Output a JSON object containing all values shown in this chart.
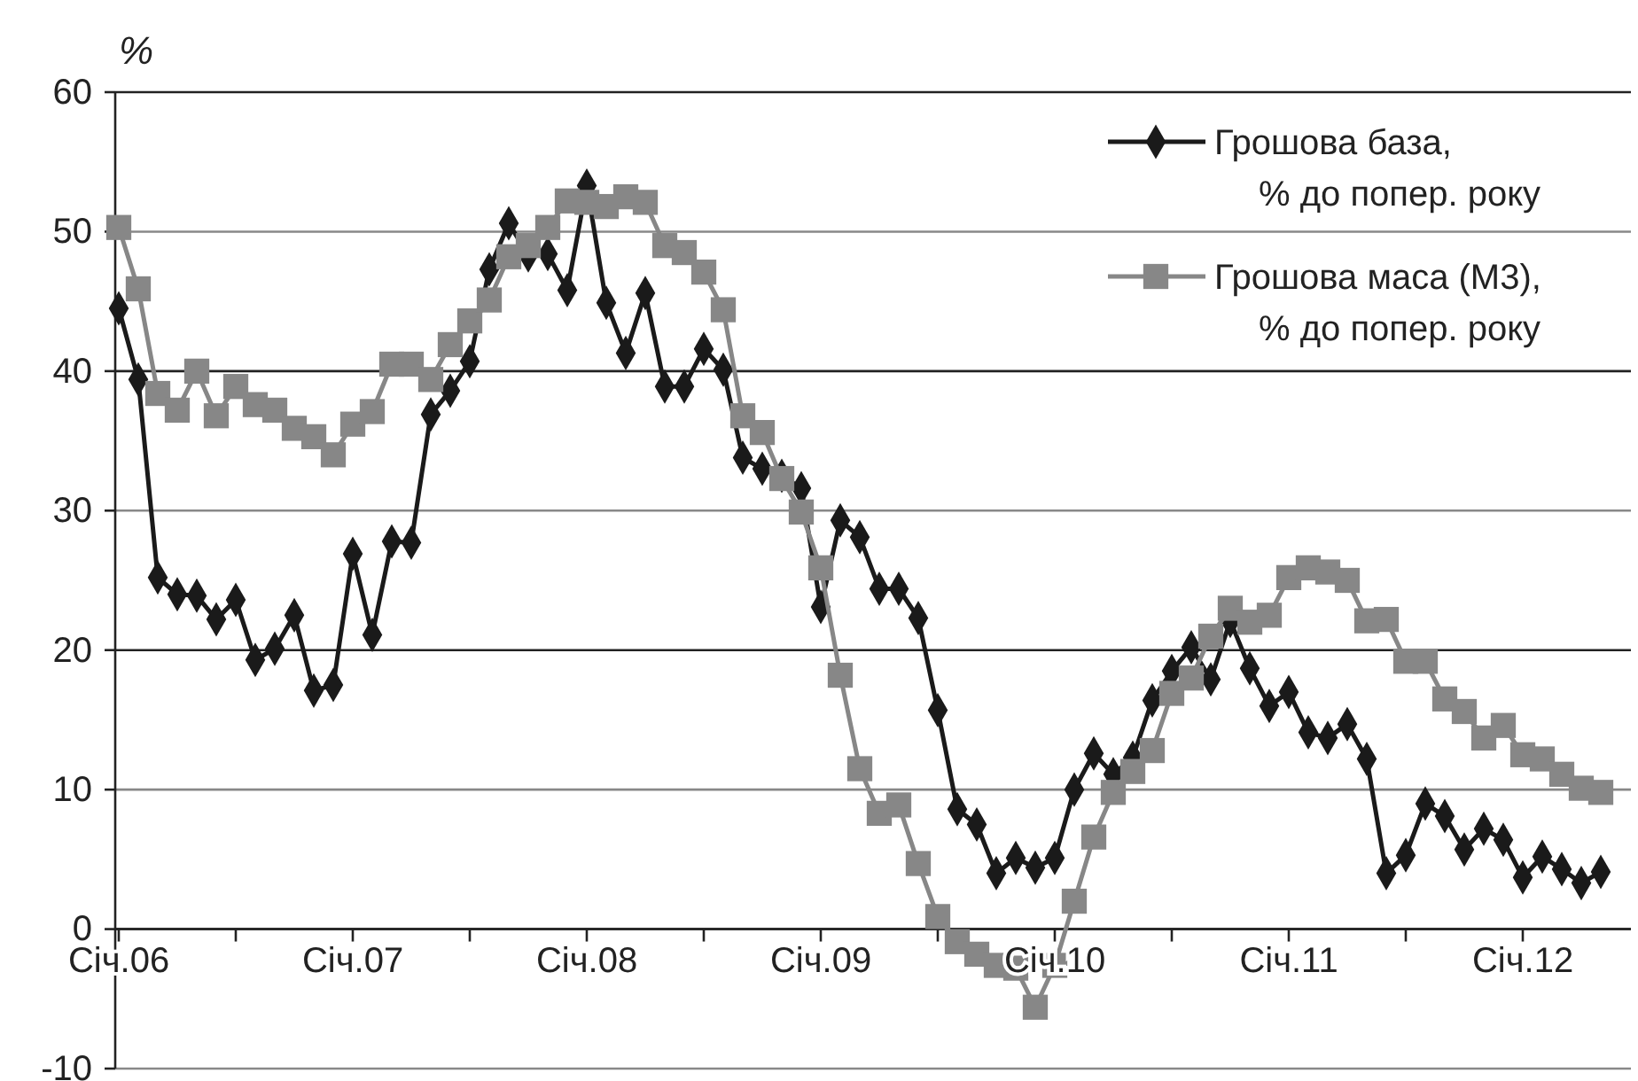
{
  "chart_data": {
    "type": "line",
    "ylabel": "%",
    "categories": [
      "Січ.06",
      null,
      null,
      null,
      null,
      null,
      null,
      null,
      null,
      null,
      null,
      null,
      "Січ.07",
      null,
      null,
      null,
      null,
      null,
      null,
      null,
      null,
      null,
      null,
      null,
      "Січ.08",
      null,
      null,
      null,
      null,
      null,
      null,
      null,
      null,
      null,
      null,
      null,
      "Січ.09",
      null,
      null,
      null,
      null,
      null,
      null,
      null,
      null,
      null,
      null,
      null,
      "Січ.10",
      null,
      null,
      null,
      null,
      null,
      null,
      null,
      null,
      null,
      null,
      null,
      "Січ.11",
      null,
      null,
      null,
      null,
      null,
      null,
      null,
      null,
      null,
      null,
      null,
      "Січ.12",
      null,
      null,
      null,
      null
    ],
    "ylim": [
      -10,
      60
    ],
    "yticks": [
      -10,
      0,
      10,
      20,
      30,
      40,
      50,
      60
    ],
    "grid": "y",
    "legend": "top right",
    "series": [
      {
        "name": "Грошова база, % до попер. року",
        "color": "#1a1a1a",
        "marker": "diamond",
        "values": [
          44.5,
          39.4,
          25.2,
          24.0,
          23.9,
          22.2,
          23.6,
          19.3,
          20.1,
          22.5,
          17.1,
          17.5,
          26.9,
          21.1,
          27.8,
          27.7,
          36.9,
          38.6,
          40.7,
          47.3,
          50.6,
          48.3,
          48.4,
          45.8,
          53.3,
          44.9,
          41.3,
          45.6,
          38.9,
          38.9,
          41.6,
          40.1,
          33.8,
          33.0,
          32.5,
          31.6,
          23.1,
          29.3,
          28.1,
          24.4,
          24.4,
          22.3,
          15.7,
          8.6,
          7.5,
          4.0,
          5.1,
          4.4,
          5.1,
          10.0,
          12.6,
          11.1,
          12.3,
          16.4,
          18.5,
          20.2,
          17.9,
          22.1,
          18.7,
          16.0,
          17.0,
          14.1,
          13.7,
          14.7,
          12.2,
          4.0,
          5.3,
          9.0,
          8.1,
          5.7,
          7.2,
          6.4,
          3.7,
          5.2,
          4.3,
          3.3,
          4.1
        ]
      },
      {
        "name": "Грошова маса (М3), % до попер. року",
        "color": "#878787",
        "marker": "square",
        "values": [
          50.3,
          45.9,
          38.4,
          37.2,
          40.0,
          36.8,
          38.9,
          37.6,
          37.2,
          35.9,
          35.3,
          34.0,
          36.2,
          37.1,
          40.5,
          40.5,
          39.4,
          41.9,
          43.6,
          45.1,
          48.2,
          49.0,
          50.3,
          52.2,
          52.1,
          51.8,
          52.5,
          52.1,
          49.0,
          48.5,
          47.1,
          44.4,
          36.8,
          35.6,
          32.3,
          29.9,
          25.9,
          18.2,
          11.5,
          8.3,
          8.9,
          4.7,
          0.9,
          -0.9,
          -1.8,
          -2.6,
          -2.8,
          -5.6,
          -2.6,
          2.0,
          6.6,
          9.8,
          11.3,
          12.8,
          16.9,
          18.0,
          21.0,
          23.0,
          22.0,
          22.5,
          25.2,
          25.9,
          25.6,
          25.0,
          22.1,
          22.2,
          19.2,
          19.2,
          16.5,
          15.6,
          13.7,
          14.6,
          12.5,
          12.2,
          11.1,
          10.1,
          9.8
        ]
      }
    ]
  }
}
